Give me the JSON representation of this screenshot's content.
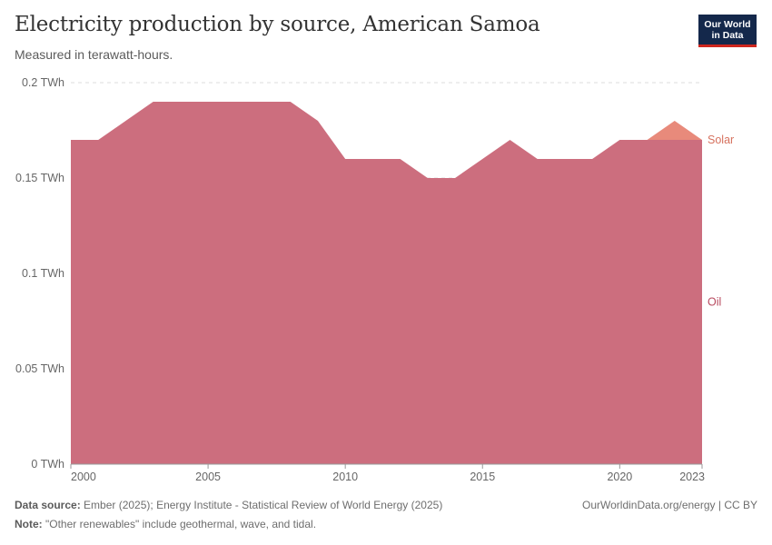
{
  "header": {
    "title": "Electricity production by source, American Samoa",
    "subtitle": "Measured in terawatt-hours.",
    "logo_line1": "Our World",
    "logo_line2": "in Data"
  },
  "footer": {
    "source_label": "Data source:",
    "source_text": " Ember (2025); Energy Institute - Statistical Review of World Energy (2025)",
    "url": "OurWorldinData.org/energy | CC BY",
    "note_label": "Note:",
    "note_text": " \"Other renewables\" include geothermal, wave, and tidal."
  },
  "colors": {
    "oil": "#cc6e7e",
    "solar": "#e88a7b",
    "oil_label": "#b84a5f",
    "solar_label": "#d6725f",
    "grid": "#dddddd",
    "axis": "#666666"
  },
  "chart_data": {
    "type": "area",
    "stacked": true,
    "title": "Electricity production by source, American Samoa",
    "ylabel": "TWh",
    "ylim": [
      0,
      0.2
    ],
    "xlim": [
      2000,
      2023
    ],
    "x": [
      2000,
      2001,
      2002,
      2003,
      2004,
      2005,
      2006,
      2007,
      2008,
      2009,
      2010,
      2011,
      2012,
      2013,
      2014,
      2015,
      2016,
      2017,
      2018,
      2019,
      2020,
      2021,
      2022,
      2023
    ],
    "series": [
      {
        "name": "Oil",
        "values": [
          0.17,
          0.17,
          0.18,
          0.19,
          0.19,
          0.19,
          0.19,
          0.19,
          0.19,
          0.18,
          0.16,
          0.16,
          0.16,
          0.15,
          0.15,
          0.16,
          0.17,
          0.16,
          0.16,
          0.16,
          0.17,
          0.17,
          0.17,
          0.17
        ]
      },
      {
        "name": "Solar",
        "values": [
          0,
          0,
          0,
          0,
          0,
          0,
          0,
          0,
          0,
          0,
          0,
          0,
          0,
          0,
          0,
          0,
          0,
          0,
          0,
          0,
          0,
          0,
          0.01,
          0
        ]
      }
    ],
    "y_ticks": [
      {
        "value": 0,
        "label": "0 TWh"
      },
      {
        "value": 0.05,
        "label": "0.05 TWh"
      },
      {
        "value": 0.1,
        "label": "0.1 TWh"
      },
      {
        "value": 0.15,
        "label": "0.15 TWh"
      },
      {
        "value": 0.2,
        "label": "0.2 TWh"
      }
    ],
    "x_ticks": [
      {
        "value": 2000,
        "label": "2000"
      },
      {
        "value": 2005,
        "label": "2005"
      },
      {
        "value": 2010,
        "label": "2010"
      },
      {
        "value": 2015,
        "label": "2015"
      },
      {
        "value": 2020,
        "label": "2020"
      },
      {
        "value": 2023,
        "label": "2023"
      }
    ],
    "legend_position": "right, inline labels"
  }
}
